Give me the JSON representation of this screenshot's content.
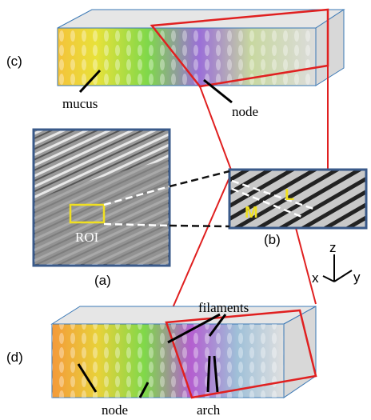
{
  "panels": {
    "c": "(c)",
    "a": "(a)",
    "b": "(b)",
    "d": "(d)"
  },
  "labels": {
    "mucus": "mucus",
    "node_c": "node",
    "roi": "ROI",
    "L": "L",
    "M": "M",
    "filaments": "filaments",
    "node_d": "node",
    "arch": "arch"
  },
  "axes": {
    "z": "z",
    "x": "x",
    "y": "y"
  }
}
